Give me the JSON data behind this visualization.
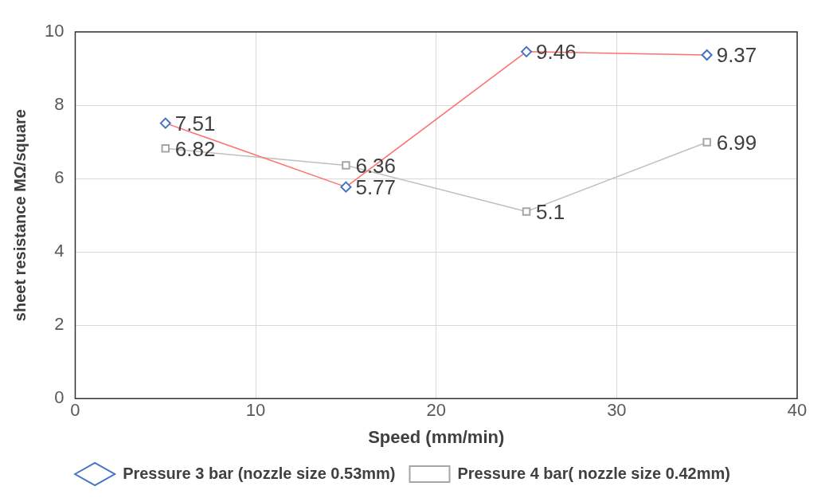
{
  "chart_data": {
    "type": "line",
    "xlabel": "Speed (mm/min)",
    "ylabel": "sheet resistance MΩ/square",
    "x": [
      5,
      15,
      25,
      35
    ],
    "series": [
      {
        "name": "Pressure 3 bar (nozzle size 0.53mm)",
        "color": "#ff7070",
        "colors": [
          "#4472c4",
          "#4472c4",
          "#4472c4",
          "#4472c4"
        ],
        "marker": "diamond",
        "values": [
          7.51,
          5.77,
          9.46,
          9.37
        ]
      },
      {
        "name": "Pressure 4 bar( nozzle size 0.42mm)",
        "color": "#bfbfbf",
        "colors": [
          "#a6a6a6",
          "#a6a6a6",
          "#a6a6a6",
          "#a6a6a6"
        ],
        "marker": "square",
        "values": [
          6.82,
          6.36,
          5.1,
          6.99
        ]
      }
    ],
    "xlim": [
      0,
      40
    ],
    "xticks": [
      0,
      10,
      20,
      30,
      40
    ],
    "ylim": [
      0,
      10
    ],
    "yticks": [
      0,
      2,
      4,
      6,
      8,
      10
    ],
    "grid": true,
    "legend": "bottom",
    "data_labels": true
  }
}
